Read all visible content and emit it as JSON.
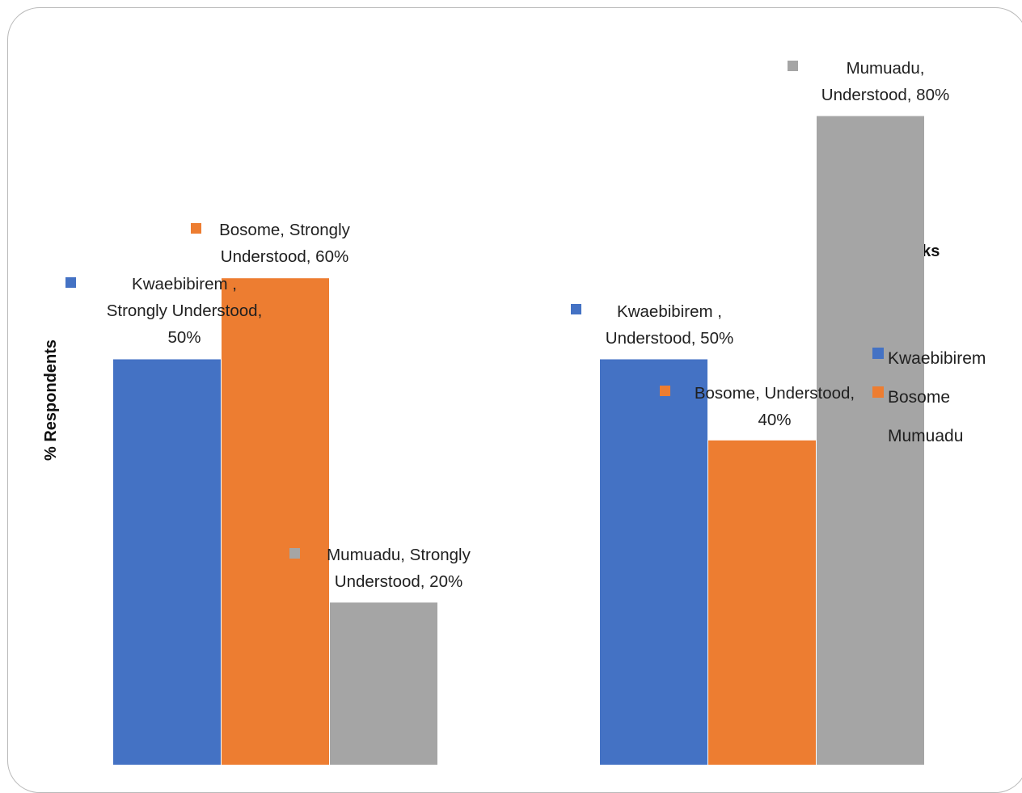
{
  "chart_data": {
    "type": "bar",
    "title": "Rural Banks",
    "ylabel": "% Respondents",
    "xlabel": "",
    "ylim": [
      0,
      100
    ],
    "grid": false,
    "legend_position": "right",
    "groups": [
      "Strongly Understood",
      "Understood"
    ],
    "series": [
      {
        "name": "Kwaebibirem",
        "color": "#4472C4",
        "values": [
          50,
          50
        ]
      },
      {
        "name": "Bosome",
        "color": "#ED7D31",
        "values": [
          60,
          40
        ]
      },
      {
        "name": "Mumuadu",
        "color": "#A5A5A5",
        "values": [
          20,
          80
        ]
      }
    ],
    "data_labels": [
      [
        "Kwaebibirem ,",
        "Strongly Understood,",
        "50%"
      ],
      [
        "Bosome, Strongly",
        "Understood, 60%"
      ],
      [
        "Mumuadu, Strongly",
        "Understood, 20%"
      ],
      [
        "Kwaebibirem ,",
        "Understood, 50%"
      ],
      [
        "Bosome, Understood,",
        "40%"
      ],
      [
        "Mumuadu,",
        "Understood, 80%"
      ]
    ]
  }
}
